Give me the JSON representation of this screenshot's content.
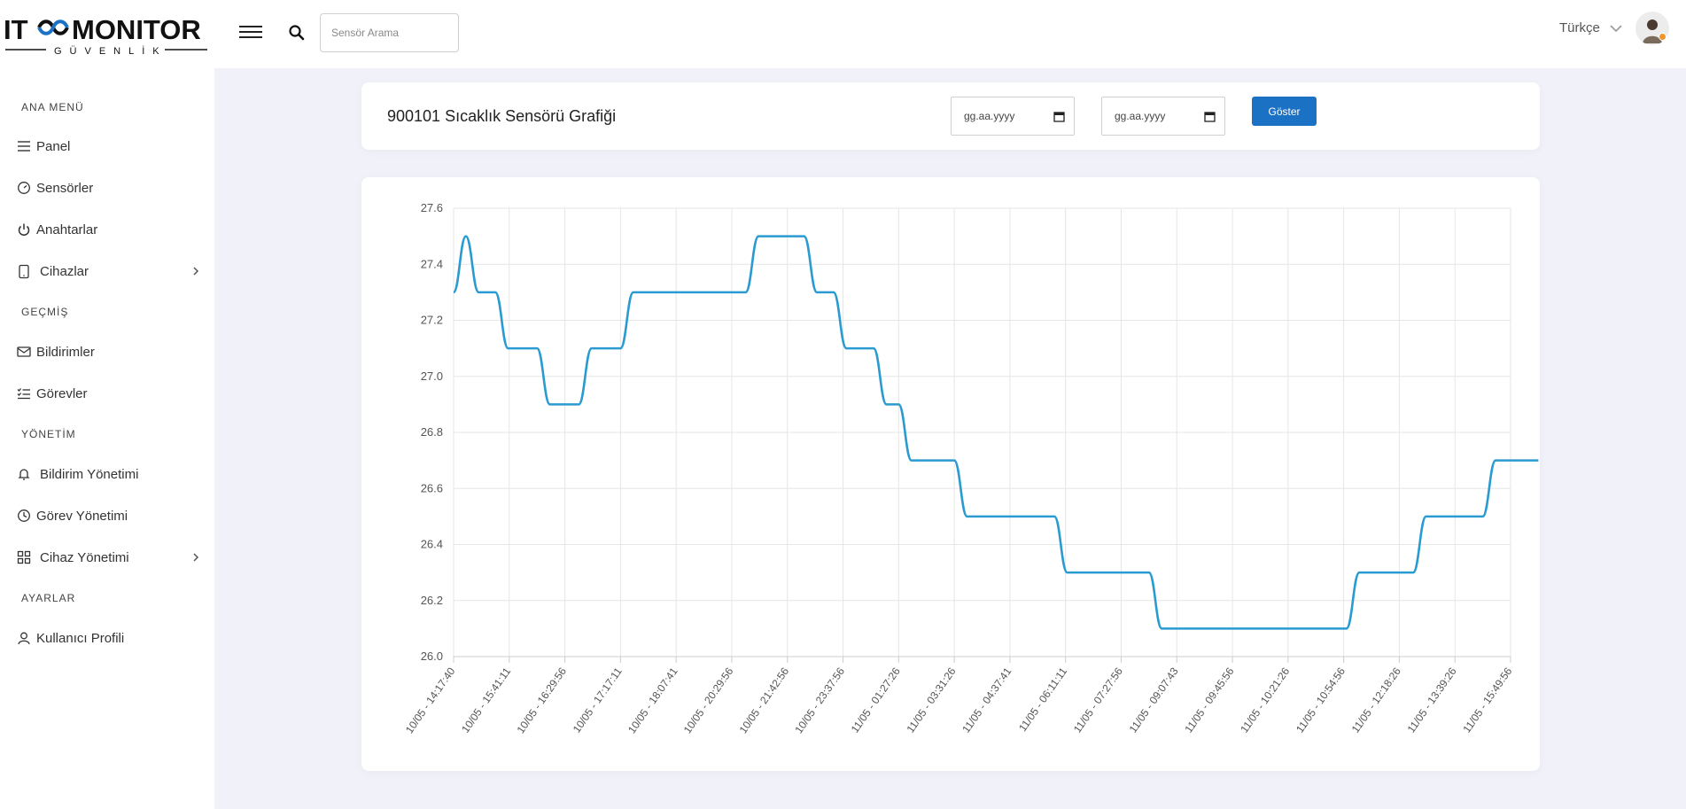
{
  "header": {
    "logo_main": "IT MONITOR",
    "logo_sub": "GÜVENLİK",
    "search_placeholder": "Sensör Arama",
    "language": "Türkçe"
  },
  "sidebar": {
    "sections": [
      {
        "title": "ANA MENÜ",
        "items": [
          {
            "label": "Panel",
            "icon": "menu-lines-icon"
          },
          {
            "label": "Sensörler",
            "icon": "gauge-icon"
          },
          {
            "label": "Anahtarlar",
            "icon": "power-icon"
          },
          {
            "label": "Cihazlar",
            "icon": "tablet-icon",
            "has_submenu": true
          }
        ]
      },
      {
        "title": "GEÇMİŞ",
        "items": [
          {
            "label": "Bildirimler",
            "icon": "mail-icon"
          },
          {
            "label": "Görevler",
            "icon": "checklist-icon"
          }
        ]
      },
      {
        "title": "YÖNETİM",
        "items": [
          {
            "label": "Bildirim Yönetimi",
            "icon": "bell-icon"
          },
          {
            "label": "Görev Yönetimi",
            "icon": "clock-icon"
          },
          {
            "label": "Cihaz Yönetimi",
            "icon": "grid-icon",
            "has_submenu": true
          }
        ]
      },
      {
        "title": "AYARLAR",
        "items": [
          {
            "label": "Kullanıcı Profili",
            "icon": "user-icon"
          }
        ]
      }
    ]
  },
  "main": {
    "title": "900101 Sıcaklık Sensörü Grafiği",
    "start_date_placeholder": "gg.aa.yyyy",
    "end_date_placeholder": "gg.aa.yyyy",
    "show_button": "Göster"
  },
  "colors": {
    "accent": "#1b72c4",
    "line": "#2a9bd1",
    "background": "#f1f1f9"
  },
  "chart_data": {
    "type": "line",
    "title": "",
    "xlabel": "",
    "ylabel": "",
    "ylim": [
      26.0,
      27.6
    ],
    "yticks": [
      26.0,
      26.2,
      26.4,
      26.6,
      26.8,
      27.0,
      27.2,
      27.4,
      27.6
    ],
    "grid": true,
    "categories": [
      "10/05 - 14:17:40",
      "10/05 - 15:41:11",
      "10/05 - 16:29:56",
      "10/05 - 17:17:11",
      "10/05 - 18:07:41",
      "10/05 - 20:29:56",
      "10/05 - 21:42:56",
      "10/05 - 23:37:56",
      "11/05 - 01:27:26",
      "11/05 - 03:31:26",
      "11/05 - 04:37:41",
      "11/05 - 06:11:11",
      "11/05 - 07:27:56",
      "11/05 - 09:07:43",
      "11/05 - 09:45:56",
      "11/05 - 10:21:26",
      "11/05 - 10:54:56",
      "11/05 - 12:18:26",
      "11/05 - 13:39:26",
      "11/05 - 15:49:56"
    ],
    "series": [
      {
        "values": [
          {
            "x": 0.0,
            "y": 27.3
          },
          {
            "x": 0.22,
            "y": 27.5
          },
          {
            "x": 0.45,
            "y": 27.3
          },
          {
            "x": 0.75,
            "y": 27.3
          },
          {
            "x": 0.98,
            "y": 27.1
          },
          {
            "x": 1.5,
            "y": 27.1
          },
          {
            "x": 1.73,
            "y": 26.9
          },
          {
            "x": 2.25,
            "y": 26.9
          },
          {
            "x": 2.48,
            "y": 27.1
          },
          {
            "x": 3.0,
            "y": 27.1
          },
          {
            "x": 3.23,
            "y": 27.3
          },
          {
            "x": 5.25,
            "y": 27.3
          },
          {
            "x": 5.48,
            "y": 27.5
          },
          {
            "x": 6.3,
            "y": 27.5
          },
          {
            "x": 6.53,
            "y": 27.3
          },
          {
            "x": 6.83,
            "y": 27.3
          },
          {
            "x": 7.06,
            "y": 27.1
          },
          {
            "x": 7.55,
            "y": 27.1
          },
          {
            "x": 7.78,
            "y": 26.9
          },
          {
            "x": 8.0,
            "y": 26.9
          },
          {
            "x": 8.23,
            "y": 26.7
          },
          {
            "x": 9.0,
            "y": 26.7
          },
          {
            "x": 9.23,
            "y": 26.5
          },
          {
            "x": 10.8,
            "y": 26.5
          },
          {
            "x": 11.03,
            "y": 26.3
          },
          {
            "x": 12.5,
            "y": 26.3
          },
          {
            "x": 12.73,
            "y": 26.1
          },
          {
            "x": 16.05,
            "y": 26.1
          },
          {
            "x": 16.28,
            "y": 26.3
          },
          {
            "x": 17.25,
            "y": 26.3
          },
          {
            "x": 17.48,
            "y": 26.5
          },
          {
            "x": 18.5,
            "y": 26.5
          },
          {
            "x": 18.73,
            "y": 26.7
          },
          {
            "x": 19.5,
            "y": 26.7
          }
        ]
      }
    ]
  }
}
